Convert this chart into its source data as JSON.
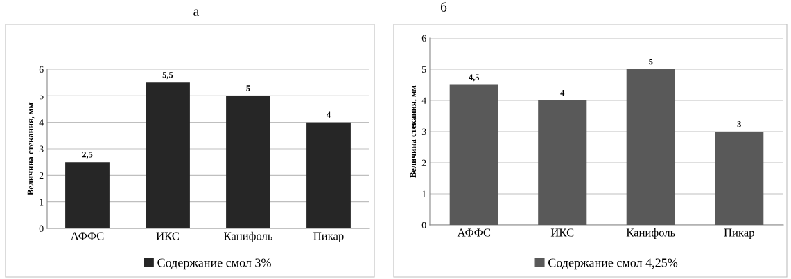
{
  "chart_data": [
    {
      "type": "bar",
      "title": "а",
      "ylabel": "Величина стекания, мм",
      "categories": [
        "АФФС",
        "ИКС",
        "Канифоль",
        "Пикар"
      ],
      "series": [
        {
          "name": "Содержание смол 3%",
          "color": "#262626",
          "values": [
            2.5,
            5.5,
            5,
            4
          ]
        }
      ],
      "value_labels": [
        "2,5",
        "5,5",
        "5",
        "4"
      ],
      "ylim": [
        0,
        6
      ],
      "yticks": [
        0,
        1,
        2,
        3,
        4,
        5,
        6
      ],
      "grid": "y",
      "legend": "bottom"
    },
    {
      "type": "bar",
      "title": "б",
      "ylabel": "Величина стекания, мм",
      "categories": [
        "АФФС",
        "ИКС",
        "Канифоль",
        "Пикар"
      ],
      "series": [
        {
          "name": "Содержание смол 4,25%",
          "color": "#595959",
          "values": [
            4.5,
            4,
            5,
            3
          ]
        }
      ],
      "value_labels": [
        "4,5",
        "4",
        "5",
        "3"
      ],
      "ylim": [
        0,
        6
      ],
      "yticks": [
        0,
        1,
        2,
        3,
        4,
        5,
        6
      ],
      "grid": "y",
      "legend": "bottom"
    }
  ]
}
